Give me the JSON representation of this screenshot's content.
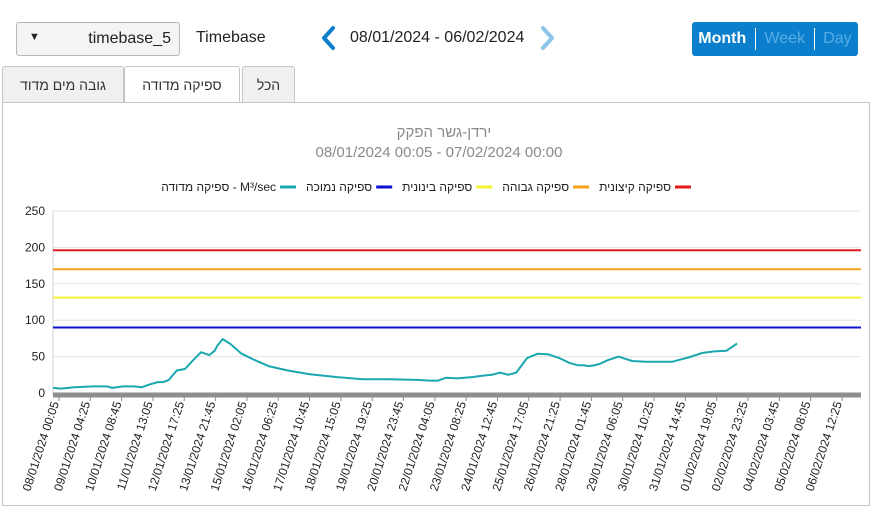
{
  "toolbar": {
    "timebase_select": "timebase_5",
    "timebase_label": "Timebase",
    "date_range": "08/01/2024 - 06/02/2024",
    "views": [
      "Month",
      "Week",
      "Day"
    ],
    "active_view": "Month"
  },
  "tabs": [
    {
      "label": "הכל",
      "active": false
    },
    {
      "label": "ספיקה מדודה",
      "active": true
    },
    {
      "label": "גובה מים מדוד",
      "active": false
    }
  ],
  "colors": {
    "accent": "#0b7fcc",
    "measured": "#1aa8b0",
    "low": "#1010d0",
    "medium": "#f2f230",
    "high": "#f7a21b",
    "extreme": "#e41a1a"
  },
  "chart_data": {
    "type": "line",
    "title": "ירדן-גשר הפקק",
    "subtitle": "08/01/2024 00:05  -  07/02/2024 00:00",
    "legend": [
      {
        "name": "ספיקה מדודה - M³/sec",
        "color": "#1aa8b0"
      },
      {
        "name": "ספיקה נמוכה",
        "color": "#1010d0"
      },
      {
        "name": "ספיקה בינונית",
        "color": "#f2f230"
      },
      {
        "name": "ספיקה גבוהה",
        "color": "#f7a21b"
      },
      {
        "name": "ספיקה קיצונית",
        "color": "#e41a1a"
      }
    ],
    "legend_position": "top",
    "ylim": [
      0,
      250
    ],
    "yticks": [
      0,
      50,
      100,
      150,
      200,
      250
    ],
    "grid": true,
    "xlim_days": [
      0,
      30
    ],
    "xticks": [
      "08/01/2024 00:05",
      "09/01/2024 04:25",
      "10/01/2024 08:45",
      "11/01/2024 13:05",
      "12/01/2024 17:25",
      "13/01/2024 21:45",
      "15/01/2024 02:05",
      "16/01/2024 06:25",
      "17/01/2024 10:45",
      "18/01/2024 15:05",
      "19/01/2024 19:25",
      "20/01/2024 23:45",
      "22/01/2024 04:05",
      "23/01/2024 08:25",
      "24/01/2024 12:45",
      "25/01/2024 17:05",
      "26/01/2024 21:25",
      "28/01/2024 01:45",
      "29/01/2024 06:05",
      "30/01/2024 10:25",
      "31/01/2024 14:45",
      "01/02/2024 19:05",
      "02/02/2024 23:25",
      "04/02/2024 03:45",
      "05/02/2024 08:05",
      "06/02/2024 12:25"
    ],
    "thresholds": [
      {
        "name": "ספיקה קיצונית",
        "value": 196,
        "color": "#e41a1a"
      },
      {
        "name": "ספיקה גבוהה",
        "value": 170,
        "color": "#f7a21b"
      },
      {
        "name": "ספיקה בינונית",
        "value": 131,
        "color": "#f2f230"
      },
      {
        "name": "ספיקה נמוכה",
        "value": 90,
        "color": "#1010d0"
      }
    ],
    "series": [
      {
        "name": "ספיקה מדודה - M³/sec",
        "color": "#1aa8b0",
        "x": [
          0,
          0.3,
          0.8,
          1.5,
          2.0,
          2.2,
          2.6,
          3.0,
          3.3,
          3.6,
          3.9,
          4.1,
          4.3,
          4.6,
          4.9,
          5.2,
          5.5,
          5.8,
          6.0,
          6.1,
          6.3,
          6.6,
          7.0,
          7.5,
          8.0,
          8.7,
          9.5,
          10.5,
          11.5,
          12.5,
          13.5,
          14.0,
          14.3,
          14.6,
          15.0,
          15.6,
          16.0,
          16.3,
          16.6,
          16.9,
          17.2,
          17.6,
          18.0,
          18.4,
          18.8,
          19.2,
          19.5,
          19.7,
          19.9,
          20.1,
          20.3,
          20.6,
          21.0,
          21.5,
          22.0,
          23.0,
          23.7,
          24.1,
          24.5,
          25.0,
          25.4
        ],
        "values": [
          7,
          6,
          8,
          9,
          9,
          7,
          9,
          9,
          8,
          12,
          15,
          15,
          18,
          31,
          33,
          45,
          56,
          52,
          58,
          65,
          74,
          67,
          54,
          45,
          37,
          31,
          26,
          22,
          19,
          19,
          18,
          17,
          17,
          21,
          20,
          22,
          24,
          25,
          28,
          25,
          28,
          48,
          54,
          53,
          48,
          41,
          38,
          38,
          37,
          38,
          40,
          45,
          50,
          44,
          43,
          43,
          50,
          55,
          57,
          58,
          68
        ]
      }
    ]
  }
}
